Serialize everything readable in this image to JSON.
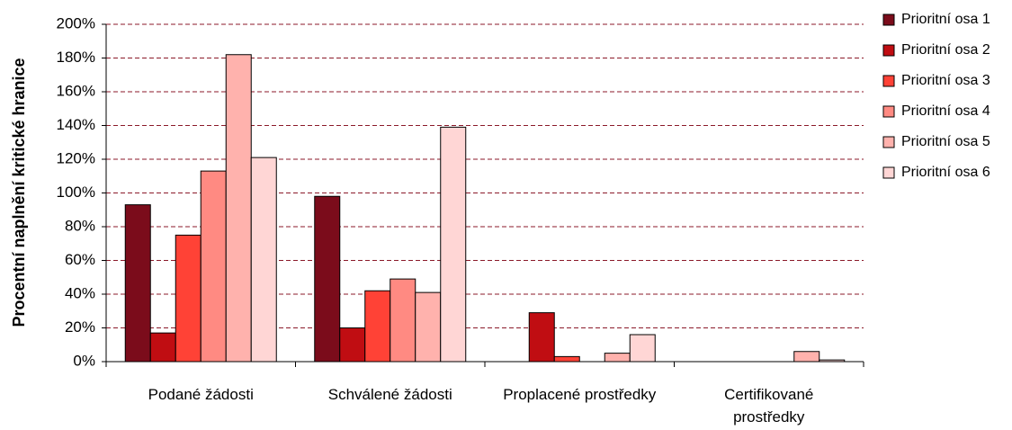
{
  "chart_data": {
    "type": "bar",
    "ylabel": "Procentní naplnění kritické hranice",
    "categories": [
      "Podané žádosti",
      "Schválené žádosti",
      "Proplacené prostředky",
      "Certifikované prostředky"
    ],
    "series": [
      {
        "name": "Prioritní osa 1",
        "color": "#7b0c1b",
        "values": [
          93,
          98,
          0,
          0
        ]
      },
      {
        "name": "Prioritní osa 2",
        "color": "#c00d12",
        "values": [
          17,
          20,
          29,
          0
        ]
      },
      {
        "name": "Prioritní osa 3",
        "color": "#ff4236",
        "values": [
          75,
          42,
          3,
          0
        ]
      },
      {
        "name": "Prioritní osa 4",
        "color": "#ff8a82",
        "values": [
          113,
          49,
          0,
          0
        ]
      },
      {
        "name": "Prioritní osa 5",
        "color": "#ffb2ad",
        "values": [
          182,
          41,
          5,
          6
        ]
      },
      {
        "name": "Prioritní osa 6",
        "color": "#ffd6d5",
        "values": [
          121,
          139,
          16,
          1
        ]
      }
    ],
    "ylim": [
      0,
      200
    ],
    "yticks": [
      {
        "value": 0,
        "label": "0%"
      },
      {
        "value": 20,
        "label": "20%"
      },
      {
        "value": 40,
        "label": "40%"
      },
      {
        "value": 60,
        "label": "60%"
      },
      {
        "value": 80,
        "label": "80%"
      },
      {
        "value": 100,
        "label": "100%"
      },
      {
        "value": 120,
        "label": "120%"
      },
      {
        "value": 140,
        "label": "140%"
      },
      {
        "value": 160,
        "label": "160%"
      },
      {
        "value": 180,
        "label": "180%"
      },
      {
        "value": 200,
        "label": "200%"
      }
    ],
    "grid": true,
    "legend": "right"
  }
}
